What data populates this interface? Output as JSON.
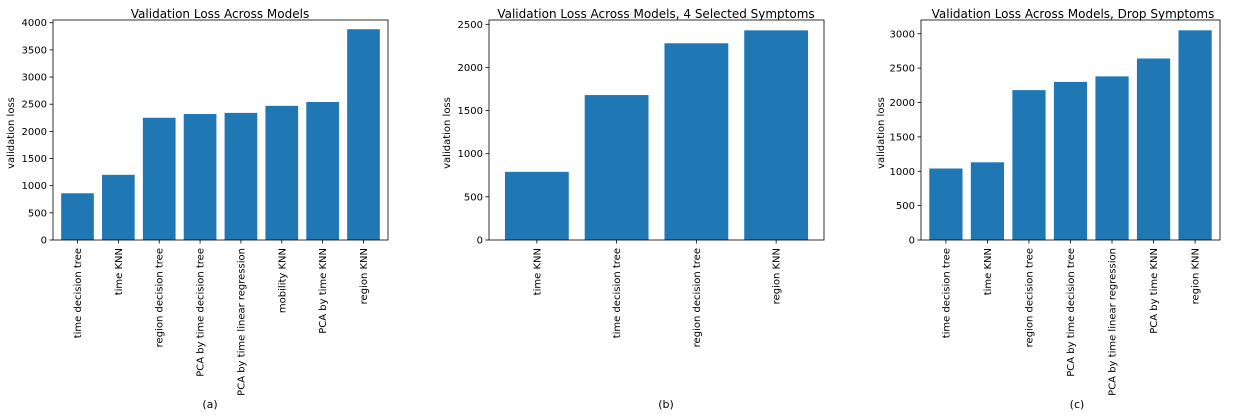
{
  "figure": {
    "bar_color": "#1f77b4",
    "captions": [
      "(a)",
      "(b)",
      "(c)"
    ]
  },
  "chart_data": [
    {
      "type": "bar",
      "title": "Validation Loss Across Models",
      "xlabel": "",
      "ylabel": "validation loss",
      "categories": [
        "time decision tree",
        "time KNN",
        "region decision tree",
        "PCA by time decision tree",
        "PCA by time linear regression",
        "mobility KNN",
        "PCA by time KNN",
        "region KNN"
      ],
      "values": [
        860,
        1200,
        2250,
        2320,
        2340,
        2470,
        2540,
        3880
      ],
      "ylim": [
        0,
        4050
      ],
      "yticks": [
        0,
        500,
        1000,
        1500,
        2000,
        2500,
        3000,
        3500,
        4000
      ],
      "grid": false,
      "legend": "none"
    },
    {
      "type": "bar",
      "title": "Validation Loss Across Models, 4 Selected Symptoms",
      "xlabel": "",
      "ylabel": "validation loss",
      "categories": [
        "time KNN",
        "time decision tree",
        "region decision tree",
        "region KNN"
      ],
      "values": [
        790,
        1680,
        2280,
        2430
      ],
      "ylim": [
        0,
        2550
      ],
      "yticks": [
        0,
        500,
        1000,
        1500,
        2000,
        2500
      ],
      "grid": false,
      "legend": "none"
    },
    {
      "type": "bar",
      "title": "Validation Loss Across Models, Drop Symptoms",
      "xlabel": "",
      "ylabel": "validation loss",
      "categories": [
        "time decision tree",
        "time KNN",
        "region decision tree",
        "PCA by time decision tree",
        "PCA by time linear regression",
        "PCA by time KNN",
        "region KNN"
      ],
      "values": [
        1040,
        1130,
        2180,
        2300,
        2380,
        2640,
        3050
      ],
      "ylim": [
        0,
        3200
      ],
      "yticks": [
        0,
        500,
        1000,
        1500,
        2000,
        2500,
        3000
      ],
      "grid": false,
      "legend": "none"
    }
  ]
}
